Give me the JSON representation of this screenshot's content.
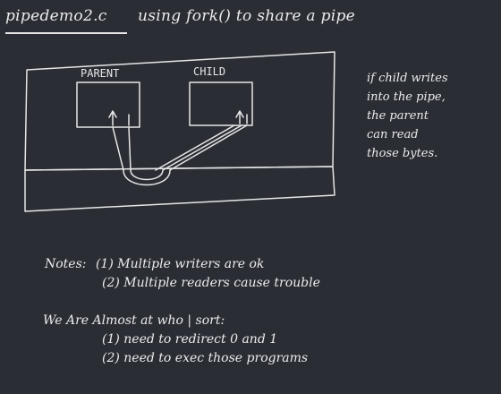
{
  "title": {
    "filename": "pipedemo2.c",
    "description": "using fork() to share a pipe"
  },
  "diagram": {
    "parent_label": "PARENT",
    "child_label": "CHILD"
  },
  "side_note": [
    "if child writes",
    "into the pipe,",
    "the parent",
    "can read",
    "those bytes."
  ],
  "notes": {
    "heading": "Notes:",
    "items": [
      "(1) Multiple writers are ok",
      "(2) Multiple readers cause trouble"
    ]
  },
  "todo": {
    "heading": "We Are Almost at who | sort:",
    "items": [
      "(1) need to redirect 0 and 1",
      "(2) need to exec those programs"
    ]
  }
}
